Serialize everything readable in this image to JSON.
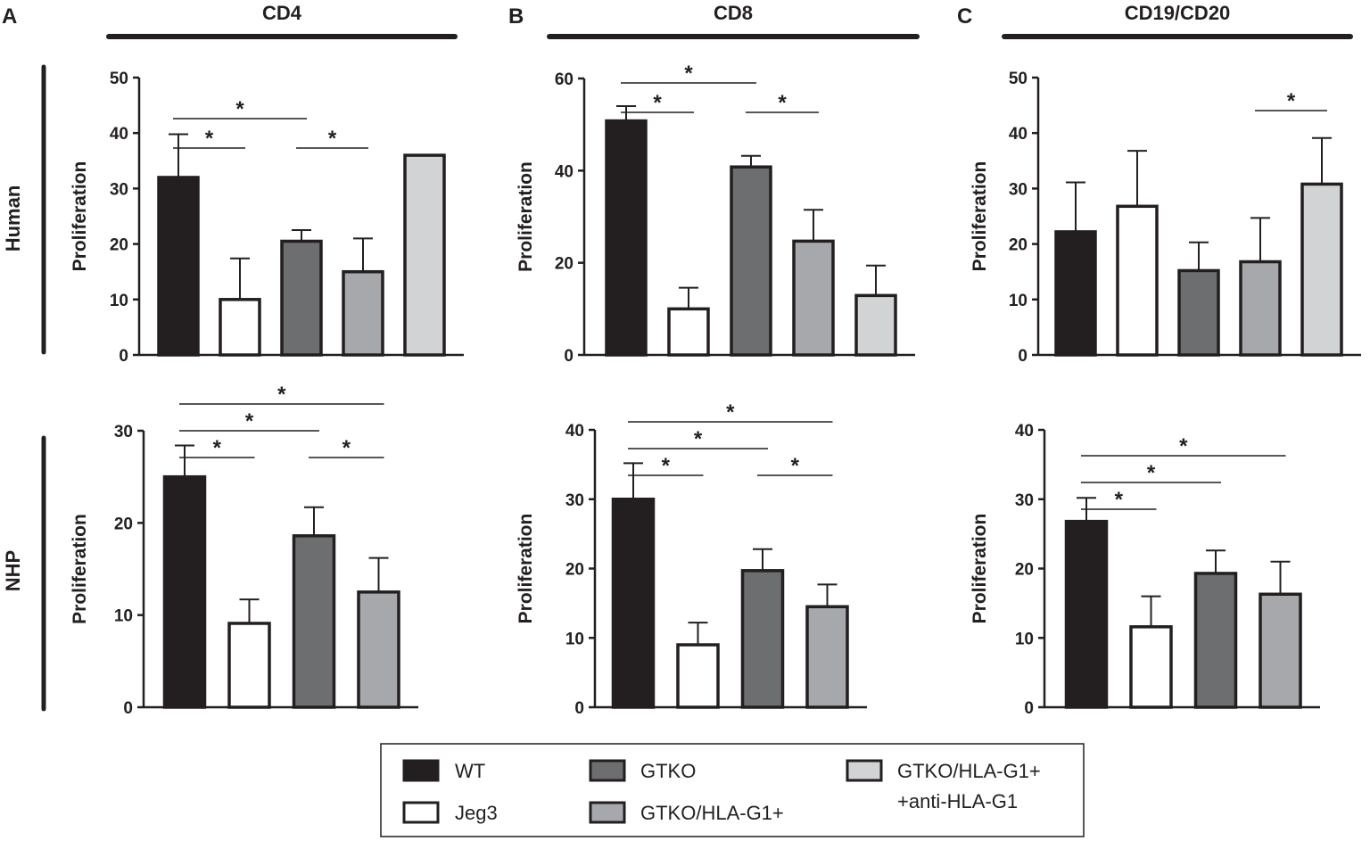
{
  "figure": {
    "panels": [
      {
        "letter": "A",
        "title": "CD4"
      },
      {
        "letter": "B",
        "title": "CD8"
      },
      {
        "letter": "C",
        "title": "CD19/CD20"
      }
    ],
    "rows": [
      "Human",
      "NHP"
    ]
  },
  "legend": {
    "items": [
      {
        "label": "WT",
        "color": "#231f20"
      },
      {
        "label": "Jeg3",
        "color": "#ffffff"
      },
      {
        "label": "GTKO",
        "color": "#6d6e70"
      },
      {
        "label": "GTKO/HLA-G1+",
        "color": "#a6a8ab"
      },
      {
        "label": "GTKO/HLA-G1+",
        "label2": "+anti-HLA-G1",
        "color": "#d1d3d4"
      }
    ]
  },
  "chart_data": [
    {
      "type": "bar",
      "panel": "A",
      "title": "CD4",
      "row": "Human",
      "ylabel": "Proliferation",
      "ylim": [
        0,
        50
      ],
      "yticks": [
        0,
        10,
        20,
        30,
        40,
        50
      ],
      "categories": [
        "WT",
        "Jeg3",
        "GTKO",
        "GTKO/HLA-G1+",
        "GTKO/HLA-G1+ +anti-HLA-G1"
      ],
      "values": [
        32,
        10,
        20.5,
        15,
        36
      ],
      "errors": [
        7.8,
        7.4,
        2,
        6,
        0
      ],
      "significance": [
        {
          "from": 0,
          "to": 1,
          "label": "*",
          "level": 0
        },
        {
          "from": 0,
          "to": 2,
          "label": "*",
          "level": 1
        },
        {
          "from": 2,
          "to": 3,
          "label": "*",
          "level": 0
        }
      ]
    },
    {
      "type": "bar",
      "panel": "B",
      "title": "CD8",
      "row": "Human",
      "ylabel": "Proliferation",
      "ylim": [
        0,
        60
      ],
      "yticks": [
        0,
        20,
        40,
        60
      ],
      "categories": [
        "WT",
        "Jeg3",
        "GTKO",
        "GTKO/HLA-G1+",
        "GTKO/HLA-G1+ +anti-HLA-G1"
      ],
      "values": [
        50.8,
        10,
        40.8,
        24.7,
        12.9
      ],
      "errors": [
        3.2,
        4.6,
        2.4,
        6.8,
        6.5
      ],
      "significance": [
        {
          "from": 0,
          "to": 1,
          "label": "*",
          "level": 0
        },
        {
          "from": 0,
          "to": 2,
          "label": "*",
          "level": 1
        },
        {
          "from": 2,
          "to": 3,
          "label": "*",
          "level": 0
        }
      ]
    },
    {
      "type": "bar",
      "panel": "C",
      "title": "CD19/CD20",
      "row": "Human",
      "ylabel": "Proliferation",
      "ylim": [
        0,
        50
      ],
      "yticks": [
        0,
        10,
        20,
        30,
        40,
        50
      ],
      "categories": [
        "WT",
        "Jeg3",
        "GTKO",
        "GTKO/HLA-G1+",
        "GTKO/HLA-G1+ +anti-HLA-G1"
      ],
      "values": [
        22.2,
        26.8,
        15.2,
        16.8,
        30.8
      ],
      "errors": [
        8.9,
        10,
        5.1,
        7.9,
        8.3
      ],
      "significance": [
        {
          "from": 3,
          "to": 4,
          "label": "*",
          "level": 0
        }
      ]
    },
    {
      "type": "bar",
      "panel": "A",
      "title": "CD4",
      "row": "NHP",
      "ylabel": "Proliferation",
      "ylim": [
        0,
        30
      ],
      "yticks": [
        0,
        10,
        20,
        30
      ],
      "categories": [
        "WT",
        "Jeg3",
        "GTKO",
        "GTKO/HLA-G1+"
      ],
      "values": [
        25,
        9.1,
        18.6,
        12.5
      ],
      "errors": [
        3.4,
        2.6,
        3.1,
        3.7
      ],
      "significance": [
        {
          "from": 0,
          "to": 1,
          "label": "*",
          "level": 0
        },
        {
          "from": 0,
          "to": 2,
          "label": "*",
          "level": 1
        },
        {
          "from": 0,
          "to": 3,
          "label": "*",
          "level": 2
        },
        {
          "from": 2,
          "to": 3,
          "label": "*",
          "level": 0
        }
      ]
    },
    {
      "type": "bar",
      "panel": "B",
      "title": "CD8",
      "row": "NHP",
      "ylabel": "Proliferation",
      "ylim": [
        0,
        40
      ],
      "yticks": [
        0,
        10,
        20,
        30,
        40
      ],
      "categories": [
        "WT",
        "Jeg3",
        "GTKO",
        "GTKO/HLA-G1+"
      ],
      "values": [
        30,
        9,
        19.7,
        14.5
      ],
      "errors": [
        5.2,
        3.2,
        3.1,
        3.2
      ],
      "significance": [
        {
          "from": 0,
          "to": 1,
          "label": "*",
          "level": 0
        },
        {
          "from": 0,
          "to": 2,
          "label": "*",
          "level": 1
        },
        {
          "from": 0,
          "to": 3,
          "label": "*",
          "level": 2
        },
        {
          "from": 2,
          "to": 3,
          "label": "*",
          "level": 0
        }
      ]
    },
    {
      "type": "bar",
      "panel": "C",
      "title": "CD19/CD20",
      "row": "NHP",
      "ylabel": "Proliferation",
      "ylim": [
        0,
        40
      ],
      "yticks": [
        0,
        10,
        20,
        30,
        40
      ],
      "categories": [
        "WT",
        "Jeg3",
        "GTKO",
        "GTKO/HLA-G1+"
      ],
      "values": [
        26.8,
        11.6,
        19.3,
        16.3
      ],
      "errors": [
        3.4,
        4.4,
        3.3,
        4.7
      ],
      "significance": [
        {
          "from": 0,
          "to": 1,
          "label": "*",
          "level": 0
        },
        {
          "from": 0,
          "to": 2,
          "label": "*",
          "level": 1
        },
        {
          "from": 0,
          "to": 3,
          "label": "*",
          "level": 2
        }
      ]
    }
  ]
}
